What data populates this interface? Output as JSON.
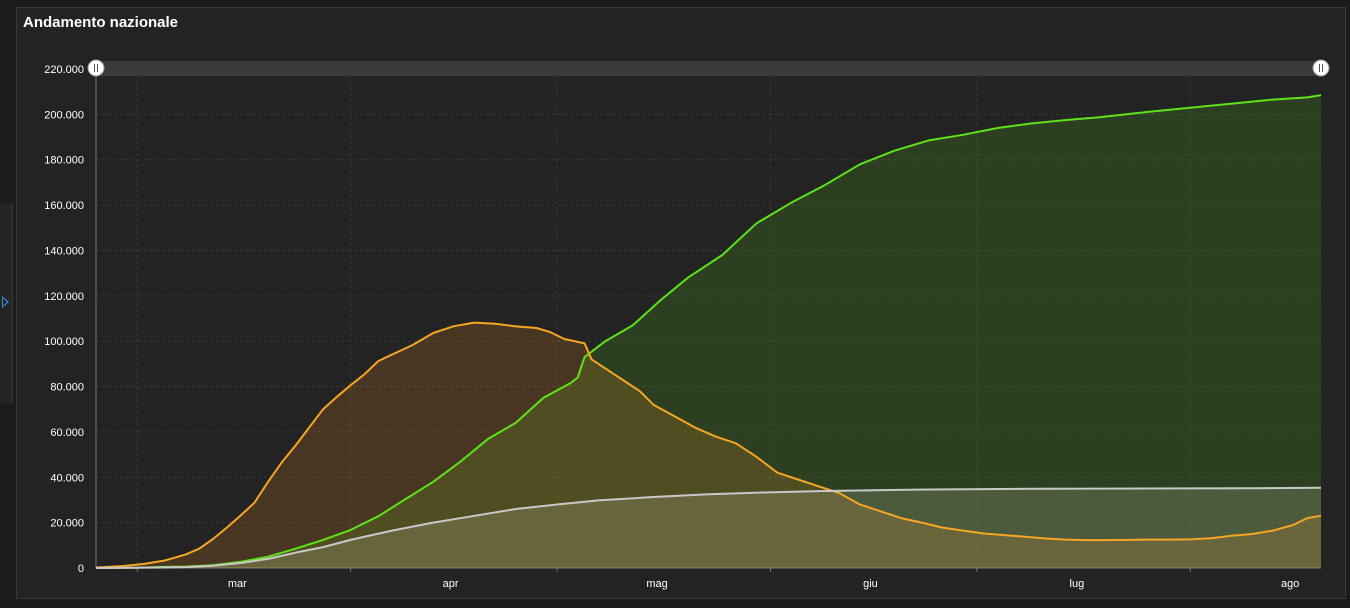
{
  "panel": {
    "title": "Andamento nazionale"
  },
  "colors": {
    "green": "#5ee21a",
    "orange": "#f5a623",
    "grey": "#c8c8c8",
    "grid": "#3a3a3a"
  },
  "chart_data": {
    "type": "area",
    "title": "Andamento nazionale",
    "x_axis": {
      "type": "date",
      "range": [
        "2020-02-24",
        "2020-08-20"
      ],
      "ticks": [
        {
          "label": "mar",
          "date": "2020-03-01"
        },
        {
          "label": "apr",
          "date": "2020-04-01"
        },
        {
          "label": "mag",
          "date": "2020-05-01"
        },
        {
          "label": "giu",
          "date": "2020-06-01"
        },
        {
          "label": "lug",
          "date": "2020-07-01"
        },
        {
          "label": "ago",
          "date": "2020-08-01"
        }
      ]
    },
    "y_axis": {
      "range": [
        0,
        220000
      ],
      "ticks": [
        {
          "value": 0,
          "label": "0"
        },
        {
          "value": 20000,
          "label": "20.000"
        },
        {
          "value": 40000,
          "label": "40.000"
        },
        {
          "value": 60000,
          "label": "60.000"
        },
        {
          "value": 80000,
          "label": "80.000"
        },
        {
          "value": 100000,
          "label": "100.000"
        },
        {
          "value": 120000,
          "label": "120.000"
        },
        {
          "value": 140000,
          "label": "140.000"
        },
        {
          "value": 160000,
          "label": "160.000"
        },
        {
          "value": 180000,
          "label": "180.000"
        },
        {
          "value": 200000,
          "label": "200.000"
        },
        {
          "value": 220000,
          "label": "220.000"
        }
      ]
    },
    "grid": true,
    "legend": "none",
    "series": [
      {
        "color": "#5ee21a",
        "points": [
          [
            "2020-02-24",
            0
          ],
          [
            "2020-03-01",
            100
          ],
          [
            "2020-03-05",
            500
          ],
          [
            "2020-03-08",
            600
          ],
          [
            "2020-03-12",
            1200
          ],
          [
            "2020-03-16",
            2700
          ],
          [
            "2020-03-20",
            5000
          ],
          [
            "2020-03-24",
            8500
          ],
          [
            "2020-03-28",
            12400
          ],
          [
            "2020-04-01",
            16800
          ],
          [
            "2020-04-05",
            22800
          ],
          [
            "2020-04-09",
            30400
          ],
          [
            "2020-04-13",
            38000
          ],
          [
            "2020-04-17",
            47000
          ],
          [
            "2020-04-21",
            57000
          ],
          [
            "2020-04-25",
            64000
          ],
          [
            "2020-04-29",
            75000
          ],
          [
            "2020-05-03",
            81600
          ],
          [
            "2020-05-04",
            84000
          ],
          [
            "2020-05-05",
            93000
          ],
          [
            "2020-05-08",
            100000
          ],
          [
            "2020-05-12",
            107000
          ],
          [
            "2020-05-16",
            118000
          ],
          [
            "2020-05-20",
            128000
          ],
          [
            "2020-05-25",
            138000
          ],
          [
            "2020-05-30",
            152000
          ],
          [
            "2020-06-04",
            161000
          ],
          [
            "2020-06-09",
            169000
          ],
          [
            "2020-06-14",
            178000
          ],
          [
            "2020-06-19",
            184000
          ],
          [
            "2020-06-24",
            188500
          ],
          [
            "2020-06-29",
            191000
          ],
          [
            "2020-07-04",
            194000
          ],
          [
            "2020-07-09",
            196000
          ],
          [
            "2020-07-14",
            197500
          ],
          [
            "2020-07-19",
            198800
          ],
          [
            "2020-07-24",
            200500
          ],
          [
            "2020-07-29",
            202000
          ],
          [
            "2020-08-03",
            203500
          ],
          [
            "2020-08-08",
            205000
          ],
          [
            "2020-08-13",
            206500
          ],
          [
            "2020-08-18",
            207500
          ],
          [
            "2020-08-20",
            208500
          ]
        ]
      },
      {
        "color": "#f5a623",
        "points": [
          [
            "2020-02-24",
            200
          ],
          [
            "2020-02-28",
            900
          ],
          [
            "2020-03-02",
            1800
          ],
          [
            "2020-03-05",
            3300
          ],
          [
            "2020-03-08",
            5900
          ],
          [
            "2020-03-10",
            8500
          ],
          [
            "2020-03-12",
            12800
          ],
          [
            "2020-03-14",
            17800
          ],
          [
            "2020-03-16",
            23100
          ],
          [
            "2020-03-18",
            28700
          ],
          [
            "2020-03-20",
            38000
          ],
          [
            "2020-03-22",
            46600
          ],
          [
            "2020-03-24",
            54000
          ],
          [
            "2020-03-26",
            62000
          ],
          [
            "2020-03-28",
            70000
          ],
          [
            "2020-03-30",
            75500
          ],
          [
            "2020-04-01",
            80600
          ],
          [
            "2020-04-03",
            85400
          ],
          [
            "2020-04-05",
            91200
          ],
          [
            "2020-04-07",
            94100
          ],
          [
            "2020-04-10",
            98300
          ],
          [
            "2020-04-13",
            103600
          ],
          [
            "2020-04-16",
            106600
          ],
          [
            "2020-04-19",
            108200
          ],
          [
            "2020-04-22",
            107700
          ],
          [
            "2020-04-25",
            106500
          ],
          [
            "2020-04-28",
            105800
          ],
          [
            "2020-04-30",
            104000
          ],
          [
            "2020-05-02",
            101000
          ],
          [
            "2020-05-05",
            99000
          ],
          [
            "2020-05-06",
            92000
          ],
          [
            "2020-05-08",
            88000
          ],
          [
            "2020-05-11",
            82000
          ],
          [
            "2020-05-13",
            78000
          ],
          [
            "2020-05-15",
            72000
          ],
          [
            "2020-05-18",
            67000
          ],
          [
            "2020-05-21",
            62000
          ],
          [
            "2020-05-24",
            58000
          ],
          [
            "2020-05-27",
            55000
          ],
          [
            "2020-05-30",
            49000
          ],
          [
            "2020-06-02",
            42000
          ],
          [
            "2020-06-05",
            39000
          ],
          [
            "2020-06-08",
            36000
          ],
          [
            "2020-06-11",
            33000
          ],
          [
            "2020-06-14",
            28000
          ],
          [
            "2020-06-17",
            25000
          ],
          [
            "2020-06-20",
            22000
          ],
          [
            "2020-06-23",
            20000
          ],
          [
            "2020-06-26",
            17800
          ],
          [
            "2020-06-29",
            16500
          ],
          [
            "2020-07-02",
            15200
          ],
          [
            "2020-07-05",
            14500
          ],
          [
            "2020-07-08",
            13800
          ],
          [
            "2020-07-11",
            13000
          ],
          [
            "2020-07-14",
            12500
          ],
          [
            "2020-07-17",
            12300
          ],
          [
            "2020-07-20",
            12300
          ],
          [
            "2020-07-23",
            12400
          ],
          [
            "2020-07-26",
            12500
          ],
          [
            "2020-07-29",
            12500
          ],
          [
            "2020-08-01",
            12600
          ],
          [
            "2020-08-04",
            13100
          ],
          [
            "2020-08-07",
            14200
          ],
          [
            "2020-08-10",
            15000
          ],
          [
            "2020-08-13",
            16500
          ],
          [
            "2020-08-16",
            19000
          ],
          [
            "2020-08-18",
            22000
          ],
          [
            "2020-08-20",
            23000
          ]
        ]
      },
      {
        "color": "#c8c8c8",
        "points": [
          [
            "2020-02-24",
            0
          ],
          [
            "2020-03-05",
            200
          ],
          [
            "2020-03-08",
            400
          ],
          [
            "2020-03-12",
            1000
          ],
          [
            "2020-03-16",
            2200
          ],
          [
            "2020-03-20",
            4000
          ],
          [
            "2020-03-24",
            6800
          ],
          [
            "2020-03-28",
            9200
          ],
          [
            "2020-04-01",
            12400
          ],
          [
            "2020-04-07",
            16500
          ],
          [
            "2020-04-13",
            20000
          ],
          [
            "2020-04-19",
            23000
          ],
          [
            "2020-04-25",
            26000
          ],
          [
            "2020-05-01",
            28000
          ],
          [
            "2020-05-07",
            29800
          ],
          [
            "2020-05-15",
            31300
          ],
          [
            "2020-05-23",
            32500
          ],
          [
            "2020-05-31",
            33300
          ],
          [
            "2020-06-08",
            33900
          ],
          [
            "2020-06-16",
            34300
          ],
          [
            "2020-06-24",
            34600
          ],
          [
            "2020-07-02",
            34800
          ],
          [
            "2020-07-10",
            34900
          ],
          [
            "2020-07-20",
            35000
          ],
          [
            "2020-08-01",
            35100
          ],
          [
            "2020-08-10",
            35200
          ],
          [
            "2020-08-20",
            35400
          ]
        ]
      }
    ]
  }
}
